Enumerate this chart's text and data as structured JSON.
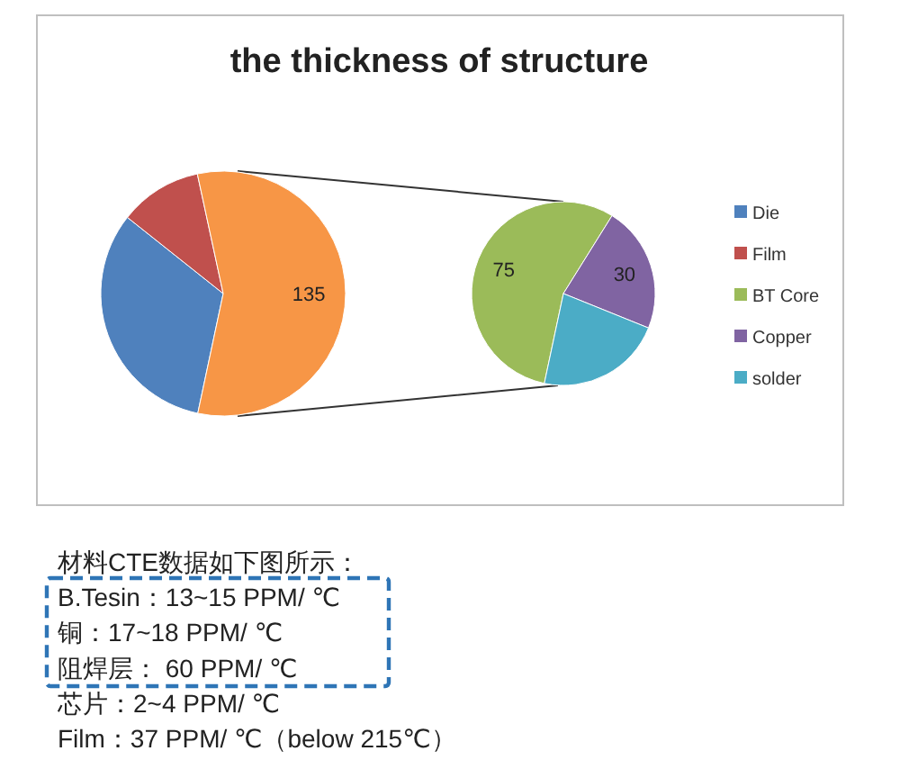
{
  "chart_data": [
    {
      "type": "pie",
      "title": "the thickness of structure",
      "categories": [
        "Die",
        "Film",
        null
      ],
      "values": [
        77,
        26,
        135
      ],
      "colors": [
        "#4f81bd",
        "#c0504d",
        "#f79646"
      ],
      "value_labels": [
        null,
        null,
        "135"
      ],
      "legend": "right"
    },
    {
      "type": "pie",
      "categories": [
        "BT Core",
        "Copper",
        "solder"
      ],
      "values": [
        75,
        30,
        30
      ],
      "colors": [
        "#9bbb59",
        "#8064a2",
        "#4bacc6"
      ],
      "value_labels": [
        "75",
        "30",
        null
      ],
      "legend": "right",
      "annotations": [
        "材料CTE数据如下图所示：",
        "B.Tesin：13~15 PPM/ ℃",
        "铜：17~18 PPM/ ℃",
        "阻焊层： 60 PPM/ ℃",
        "芯片：2~4 PPM/ ℃",
        "Film：37 PPM/ ℃（below 215℃）"
      ]
    }
  ]
}
